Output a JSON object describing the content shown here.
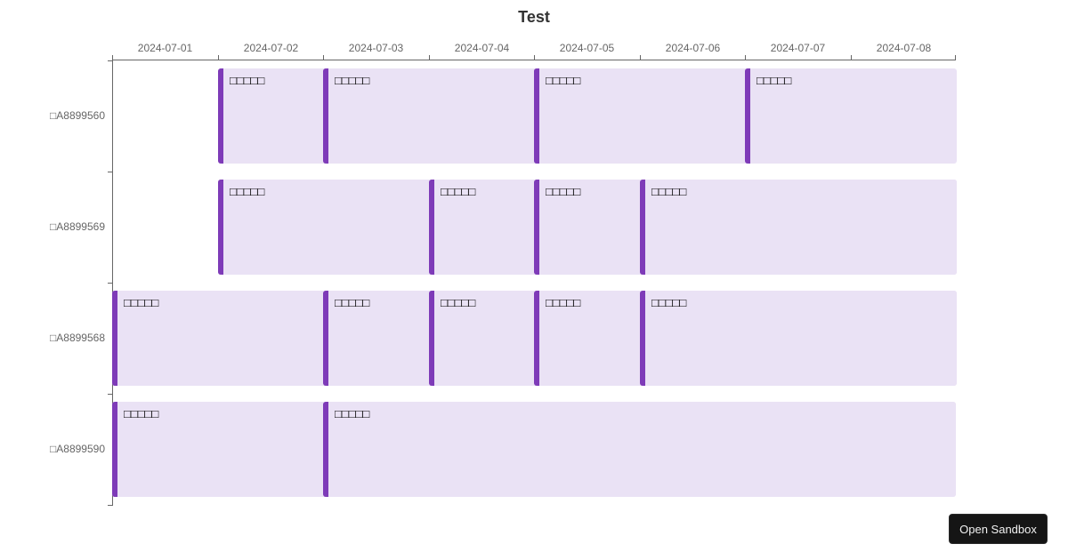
{
  "chart_data": {
    "type": "gantt",
    "title": "Test",
    "xlabel": "",
    "ylabel": "",
    "x_ticks": [
      "2024-07-01",
      "2024-07-02",
      "2024-07-03",
      "2024-07-04",
      "2024-07-05",
      "2024-07-06",
      "2024-07-07",
      "2024-07-08"
    ],
    "x_range": [
      "2024-07-01",
      "2024-07-09"
    ],
    "categories": [
      "□A8899560",
      "□A8899569",
      "□A8899568",
      "□A8899590"
    ],
    "colors": {
      "accent": "#7e3bb8",
      "bar_fill": "#eae2f5",
      "axis": "#666666",
      "title": "#333333"
    },
    "series": [
      {
        "row": "□A8899560",
        "tasks": [
          {
            "label": "□□□□□",
            "start": "2024-07-02",
            "end": "2024-07-09"
          },
          {
            "label": "□□□□□",
            "start": "2024-07-03",
            "end": "2024-07-09"
          },
          {
            "label": "□□□□□",
            "start": "2024-07-05",
            "end": "2024-07-09"
          },
          {
            "label": "□□□□□",
            "start": "2024-07-05",
            "end": "2024-07-09"
          },
          {
            "label": "□□□□□",
            "start": "2024-07-07",
            "end": "2024-07-09"
          }
        ]
      },
      {
        "row": "□A8899569",
        "tasks": [
          {
            "label": "□□□□□",
            "start": "2024-07-02",
            "end": "2024-07-09"
          },
          {
            "label": "□□□□□",
            "start": "2024-07-02",
            "end": "2024-07-09"
          },
          {
            "label": "□□□□□",
            "start": "2024-07-04",
            "end": "2024-07-09"
          },
          {
            "label": "□□□□□",
            "start": "2024-07-05",
            "end": "2024-07-09"
          },
          {
            "label": "□□□□□",
            "start": "2024-07-06",
            "end": "2024-07-09"
          }
        ]
      },
      {
        "row": "□A8899568",
        "tasks": [
          {
            "label": "□□□□□",
            "start": "2024-07-01",
            "end": "2024-07-09"
          },
          {
            "label": "□□□□□",
            "start": "2024-07-03",
            "end": "2024-07-09"
          },
          {
            "label": "□□□□□",
            "start": "2024-07-04",
            "end": "2024-07-09"
          },
          {
            "label": "□□□□□",
            "start": "2024-07-05",
            "end": "2024-07-09"
          },
          {
            "label": "□□□□□",
            "start": "2024-07-06",
            "end": "2024-07-09"
          }
        ]
      },
      {
        "row": "□A8899590",
        "tasks": [
          {
            "label": "□□□□□",
            "start": "2024-07-01",
            "end": "2024-07-09"
          },
          {
            "label": "□□□□□",
            "start": "2024-07-03",
            "end": "2024-07-09"
          }
        ]
      }
    ]
  },
  "ui": {
    "open_sandbox_label": "Open Sandbox"
  }
}
